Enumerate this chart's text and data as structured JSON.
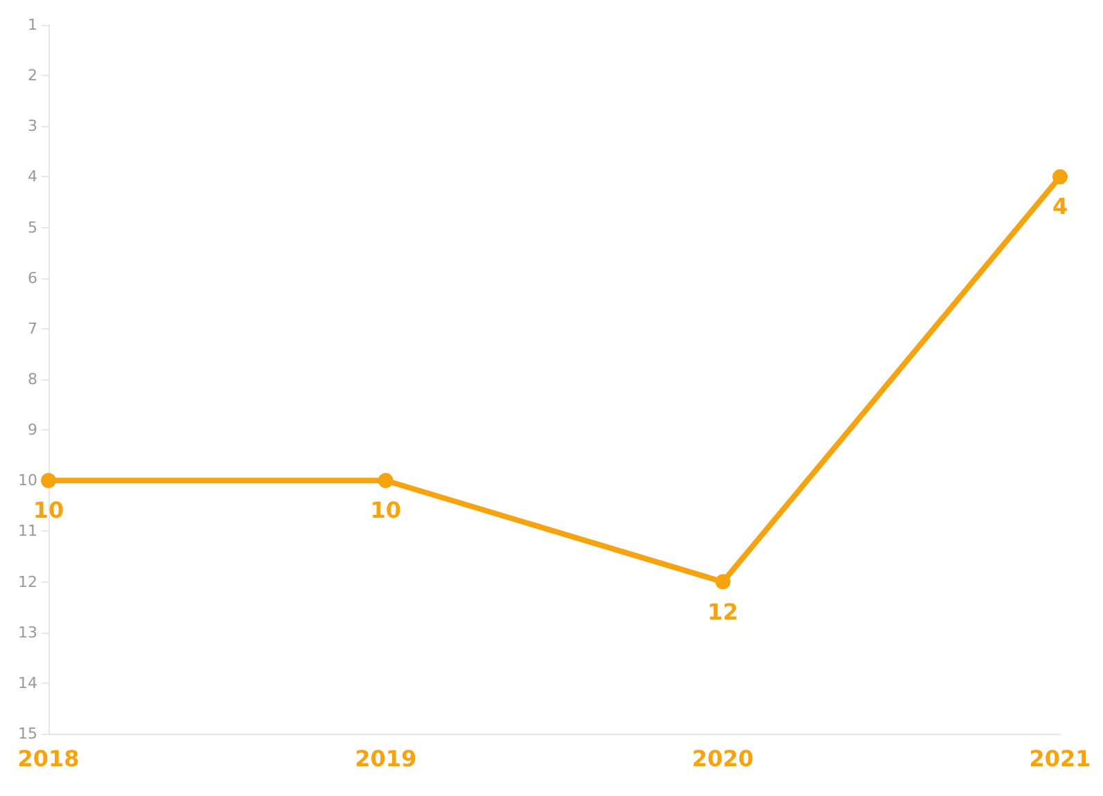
{
  "chart_data": {
    "type": "line",
    "categories": [
      "2018",
      "2019",
      "2020",
      "2021"
    ],
    "series": [
      {
        "color": "#f5a30f",
        "values": [
          10,
          10,
          12,
          4
        ]
      }
    ],
    "ylim": [
      15,
      1
    ],
    "yticks": [
      1,
      2,
      3,
      4,
      5,
      6,
      7,
      8,
      9,
      10,
      11,
      12,
      13,
      14,
      15
    ],
    "data_labels": true,
    "marker": "circle"
  }
}
